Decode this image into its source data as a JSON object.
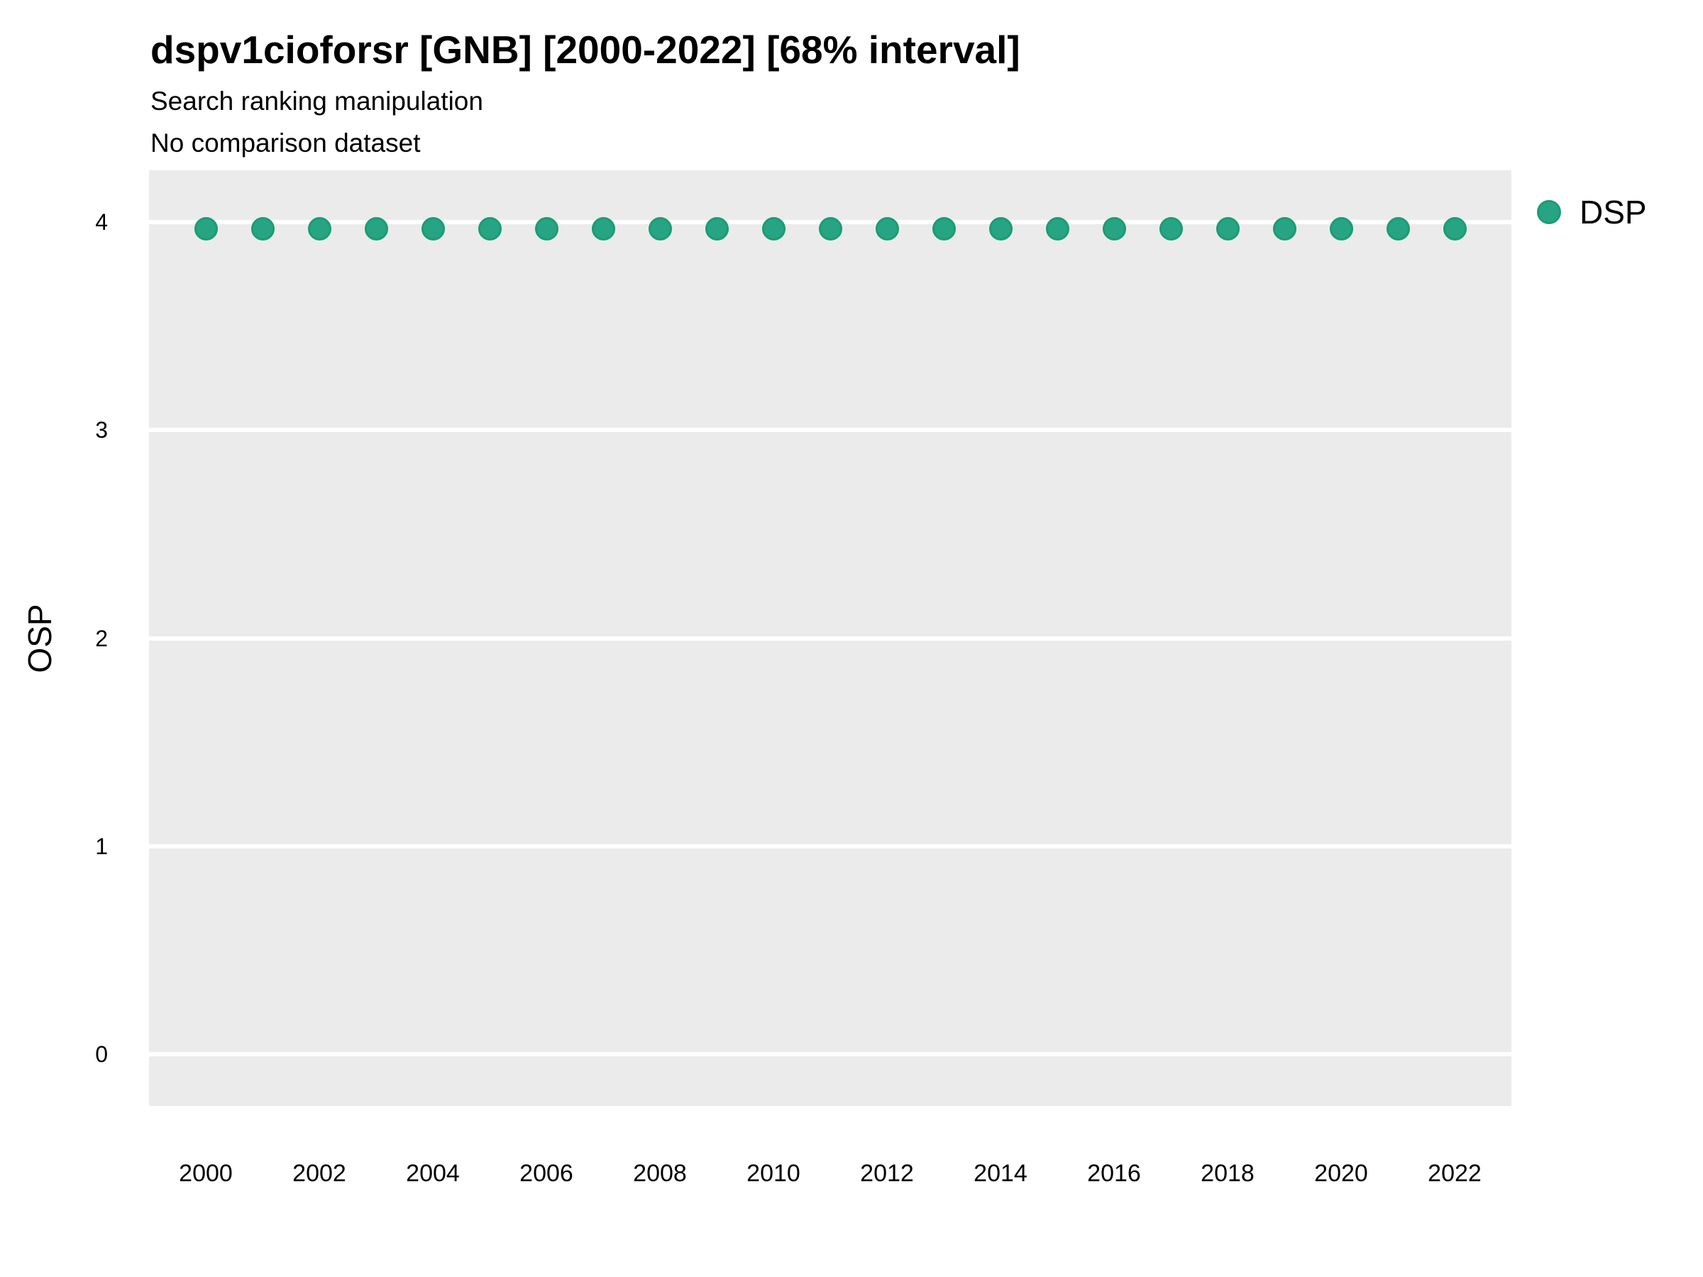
{
  "header": {
    "title": "dspv1cioforsr [GNB] [2000-2022] [68% interval]",
    "subtitle1": "Search ranking manipulation",
    "subtitle2": "No comparison dataset"
  },
  "colors": {
    "panel_background": "#EBEBEB",
    "gridline": "#FFFFFF",
    "point_fill": "#27A483",
    "point_edge": "#1B9C74",
    "text": "#000000"
  },
  "legend": {
    "position": "right-top",
    "items": [
      {
        "label": "DSP",
        "fill": "#27A483",
        "edge": "#1B9C74"
      }
    ]
  },
  "chart_data": {
    "type": "scatter",
    "title": "dspv1cioforsr [GNB] [2000-2022] [68% interval]",
    "subtitle": [
      "Search ranking manipulation",
      "No comparison dataset"
    ],
    "xlabel": "",
    "ylabel": "OSP",
    "x_ticks": [
      2000,
      2002,
      2004,
      2006,
      2008,
      2010,
      2012,
      2014,
      2016,
      2018,
      2020,
      2022
    ],
    "y_ticks": [
      0,
      1,
      2,
      3,
      4
    ],
    "xlim": [
      1999,
      2023
    ],
    "ylim": [
      -0.25,
      4.25
    ],
    "grid": "horizontal-major-only",
    "legend_position": "right-top",
    "series": [
      {
        "name": "DSP",
        "color": "#27A483",
        "edge_color": "#1B9C74",
        "x": [
          2000,
          2001,
          2002,
          2003,
          2004,
          2005,
          2006,
          2007,
          2008,
          2009,
          2010,
          2011,
          2012,
          2013,
          2014,
          2015,
          2016,
          2017,
          2018,
          2019,
          2020,
          2021,
          2022
        ],
        "y": [
          3.97,
          3.97,
          3.97,
          3.97,
          3.97,
          3.97,
          3.97,
          3.97,
          3.97,
          3.97,
          3.97,
          3.97,
          3.97,
          3.97,
          3.97,
          3.97,
          3.97,
          3.97,
          3.97,
          3.97,
          3.97,
          3.97,
          3.97
        ]
      }
    ]
  }
}
